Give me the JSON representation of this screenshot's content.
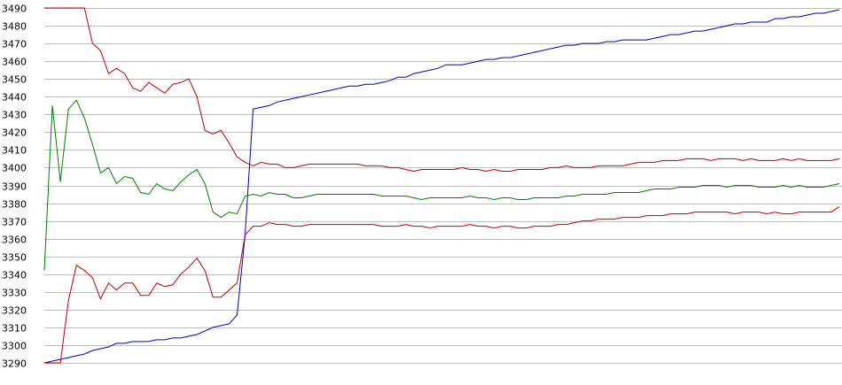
{
  "chart_data": {
    "type": "line",
    "title": "",
    "xlabel": "",
    "ylabel": "",
    "ylim": [
      3290,
      3490
    ],
    "yticks": [
      3290,
      3300,
      3310,
      3320,
      3330,
      3340,
      3350,
      3360,
      3370,
      3380,
      3390,
      3400,
      3410,
      3420,
      3430,
      3440,
      3450,
      3460,
      3470,
      3480,
      3490
    ],
    "grid": true,
    "legend": "none",
    "x": [
      0,
      1,
      2,
      3,
      4,
      5,
      6,
      7,
      8,
      9,
      10,
      11,
      12,
      13,
      14,
      15,
      16,
      17,
      18,
      19,
      20,
      21,
      22,
      23,
      24,
      25,
      26,
      27,
      28,
      29,
      30,
      31,
      32,
      33,
      34,
      35,
      36,
      37,
      38,
      39,
      40,
      41,
      42,
      43,
      44,
      45,
      46,
      47,
      48,
      49,
      50,
      51,
      52,
      53,
      54,
      55,
      56,
      57,
      58,
      59,
      60,
      61,
      62,
      63,
      64,
      65,
      66,
      67,
      68,
      69,
      70,
      71,
      72,
      73,
      74,
      75,
      76,
      77,
      78,
      79,
      80,
      81,
      82,
      83,
      84,
      85,
      86,
      87,
      88,
      89,
      90,
      91,
      92,
      93,
      94,
      95,
      96,
      97,
      98,
      99
    ],
    "series": [
      {
        "color": "#0000c0",
        "values": [
          3290,
          3291,
          3292,
          3293,
          3294,
          3295,
          3297,
          3298,
          3299,
          3301,
          3301,
          3302,
          3302,
          3302,
          3303,
          3303,
          3304,
          3304,
          3305,
          3306,
          3308,
          3310,
          3311,
          3312,
          3317,
          3362,
          3433,
          3434,
          3435,
          3437,
          3438,
          3439,
          3440,
          3441,
          3442,
          3443,
          3444,
          3445,
          3446,
          3446,
          3447,
          3447,
          3448,
          3449,
          3451,
          3451,
          3453,
          3454,
          3455,
          3456,
          3458,
          3458,
          3458,
          3459,
          3460,
          3461,
          3461,
          3462,
          3462,
          3463,
          3464,
          3465,
          3466,
          3467,
          3468,
          3469,
          3469,
          3470,
          3470,
          3470,
          3471,
          3471,
          3472,
          3472,
          3472,
          3472,
          3473,
          3474,
          3475,
          3475,
          3476,
          3477,
          3477,
          3478,
          3479,
          3480,
          3481,
          3481,
          3482,
          3482,
          3482,
          3484,
          3484,
          3485,
          3485,
          3486,
          3487,
          3487,
          3488,
          3489
        ]
      },
      {
        "color": "#c00000",
        "values": [
          3490,
          3490,
          3490,
          3490,
          3490,
          3490,
          3470,
          3466,
          3453,
          3456,
          3453,
          3445,
          3443,
          3448,
          3445,
          3442,
          3447,
          3448,
          3450,
          3440,
          3421,
          3419,
          3421,
          3414,
          3406,
          3403,
          3401,
          3403,
          3402,
          3402,
          3400,
          3400,
          3401,
          3402,
          3402,
          3402,
          3402,
          3402,
          3402,
          3402,
          3401,
          3401,
          3401,
          3400,
          3400,
          3399,
          3398,
          3399,
          3399,
          3399,
          3399,
          3399,
          3400,
          3399,
          3399,
          3398,
          3399,
          3398,
          3398,
          3399,
          3399,
          3399,
          3399,
          3400,
          3400,
          3401,
          3400,
          3400,
          3400,
          3401,
          3401,
          3401,
          3401,
          3402,
          3403,
          3403,
          3403,
          3404,
          3404,
          3404,
          3405,
          3405,
          3405,
          3404,
          3405,
          3405,
          3405,
          3404,
          3405,
          3404,
          3404,
          3404,
          3405,
          3404,
          3405,
          3404,
          3404,
          3404,
          3404,
          3405
        ]
      },
      {
        "color": "#008000",
        "values": [
          3342,
          3435,
          3392,
          3433,
          3438,
          3428,
          3413,
          3397,
          3400,
          3391,
          3395,
          3394,
          3386,
          3385,
          3391,
          3388,
          3387,
          3392,
          3396,
          3399,
          3391,
          3375,
          3372,
          3375,
          3374,
          3384,
          3385,
          3384,
          3386,
          3385,
          3385,
          3383,
          3383,
          3384,
          3385,
          3385,
          3385,
          3385,
          3385,
          3385,
          3385,
          3385,
          3384,
          3384,
          3384,
          3384,
          3383,
          3382,
          3383,
          3383,
          3383,
          3383,
          3383,
          3384,
          3383,
          3383,
          3382,
          3383,
          3383,
          3382,
          3382,
          3383,
          3383,
          3383,
          3383,
          3384,
          3384,
          3385,
          3385,
          3385,
          3385,
          3386,
          3386,
          3386,
          3386,
          3387,
          3388,
          3388,
          3388,
          3389,
          3389,
          3389,
          3390,
          3390,
          3390,
          3389,
          3390,
          3390,
          3390,
          3389,
          3389,
          3389,
          3390,
          3389,
          3390,
          3389,
          3389,
          3389,
          3390,
          3391
        ]
      },
      {
        "color": "#c00000",
        "values": [
          3290,
          3290,
          3290,
          3325,
          3345,
          3342,
          3338,
          3326,
          3335,
          3331,
          3335,
          3335,
          3328,
          3328,
          3335,
          3333,
          3334,
          3340,
          3344,
          3349,
          3342,
          3327,
          3327,
          3331,
          3335,
          3362,
          3367,
          3367,
          3369,
          3368,
          3368,
          3367,
          3367,
          3368,
          3368,
          3368,
          3368,
          3368,
          3368,
          3368,
          3368,
          3368,
          3367,
          3367,
          3367,
          3368,
          3367,
          3367,
          3366,
          3367,
          3367,
          3367,
          3367,
          3368,
          3367,
          3367,
          3366,
          3367,
          3367,
          3366,
          3366,
          3367,
          3367,
          3367,
          3368,
          3368,
          3369,
          3370,
          3370,
          3371,
          3371,
          3371,
          3372,
          3372,
          3372,
          3373,
          3373,
          3373,
          3374,
          3374,
          3374,
          3375,
          3375,
          3375,
          3375,
          3375,
          3374,
          3375,
          3375,
          3375,
          3374,
          3375,
          3374,
          3374,
          3375,
          3375,
          3375,
          3375,
          3375,
          3378
        ]
      }
    ]
  }
}
